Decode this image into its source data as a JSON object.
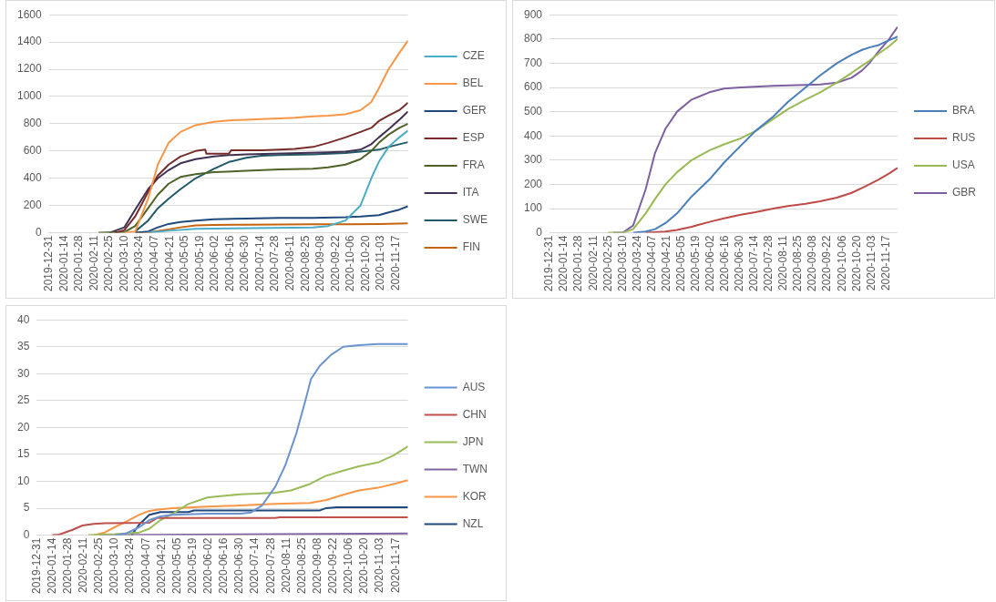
{
  "chart_data": [
    {
      "type": "line",
      "xlim": [
        "2019-12-31",
        "2020-11-28"
      ],
      "xticks": [
        "2019-12-31",
        "2020-01-14",
        "2020-01-28",
        "2020-02-11",
        "2020-02-25",
        "2020-03-10",
        "2020-03-24",
        "2020-04-07",
        "2020-04-21",
        "2020-05-05",
        "2020-05-19",
        "2020-06-02",
        "2020-06-16",
        "2020-06-30",
        "2020-07-14",
        "2020-07-28",
        "2020-08-11",
        "2020-08-25",
        "2020-09-08",
        "2020-09-22",
        "2020-10-06",
        "2020-10-20",
        "2020-11-03",
        "2020-11-17"
      ],
      "ylim": [
        0,
        1600
      ],
      "yticks": [
        0,
        200,
        400,
        600,
        800,
        1000,
        1200,
        1400,
        1600
      ],
      "grid": "y",
      "legend": "right",
      "marker": "none",
      "series": [
        {
          "name": "CZE",
          "color": "#4bacc6",
          "x": [
            "2020-04-01",
            "2020-04-20",
            "2020-05-15",
            "2020-06-01",
            "2020-09-01",
            "2020-09-15",
            "2020-10-01",
            "2020-10-15",
            "2020-10-25",
            "2020-11-01",
            "2020-11-10",
            "2020-11-20",
            "2020-11-28"
          ],
          "values": [
            2,
            15,
            30,
            31,
            40,
            50,
            90,
            200,
            400,
            520,
            630,
            700,
            750
          ]
        },
        {
          "name": "BEL",
          "color": "#f79646",
          "x": [
            "2020-03-10",
            "2020-03-20",
            "2020-04-01",
            "2020-04-10",
            "2020-04-20",
            "2020-05-01",
            "2020-05-15",
            "2020-06-01",
            "2020-06-15",
            "2020-07-01",
            "2020-07-15",
            "2020-08-01",
            "2020-08-15",
            "2020-09-01",
            "2020-09-15",
            "2020-10-01",
            "2020-10-15",
            "2020-10-25",
            "2020-11-01",
            "2020-11-10",
            "2020-11-20",
            "2020-11-28"
          ],
          "values": [
            0,
            10,
            250,
            500,
            660,
            740,
            790,
            815,
            825,
            830,
            835,
            840,
            845,
            855,
            860,
            870,
            900,
            960,
            1060,
            1200,
            1320,
            1410
          ]
        },
        {
          "name": "GER",
          "color": "#1f497d",
          "x": [
            "2020-03-20",
            "2020-04-01",
            "2020-04-10",
            "2020-04-20",
            "2020-05-01",
            "2020-05-15",
            "2020-06-01",
            "2020-07-01",
            "2020-08-01",
            "2020-09-01",
            "2020-10-01",
            "2020-10-15",
            "2020-11-01",
            "2020-11-10",
            "2020-11-20",
            "2020-11-28"
          ],
          "values": [
            0,
            10,
            40,
            65,
            80,
            90,
            100,
            105,
            110,
            110,
            115,
            120,
            130,
            150,
            170,
            195
          ]
        },
        {
          "name": "ESP",
          "color": "#772c2a",
          "x": [
            "2020-03-01",
            "2020-03-10",
            "2020-03-20",
            "2020-04-01",
            "2020-04-10",
            "2020-04-20",
            "2020-05-01",
            "2020-05-15",
            "2020-05-24",
            "2020-05-25",
            "2020-06-15",
            "2020-06-17",
            "2020-07-15",
            "2020-08-01",
            "2020-08-15",
            "2020-09-01",
            "2020-09-15",
            "2020-10-01",
            "2020-10-15",
            "2020-10-25",
            "2020-11-01",
            "2020-11-10",
            "2020-11-20",
            "2020-11-28"
          ],
          "values": [
            0,
            20,
            120,
            300,
            420,
            500,
            560,
            600,
            610,
            580,
            580,
            605,
            605,
            610,
            615,
            630,
            660,
            700,
            740,
            770,
            820,
            860,
            900,
            955
          ]
        },
        {
          "name": "FRA",
          "color": "#4f6228",
          "x": [
            "2020-02-15",
            "2020-03-10",
            "2020-03-20",
            "2020-04-01",
            "2020-04-10",
            "2020-04-20",
            "2020-05-01",
            "2020-05-15",
            "2020-06-01",
            "2020-07-01",
            "2020-08-01",
            "2020-09-01",
            "2020-09-15",
            "2020-10-01",
            "2020-10-15",
            "2020-10-25",
            "2020-11-01",
            "2020-11-10",
            "2020-11-20",
            "2020-11-28"
          ],
          "values": [
            0,
            5,
            50,
            180,
            280,
            360,
            410,
            430,
            445,
            455,
            465,
            470,
            480,
            500,
            540,
            600,
            660,
            720,
            770,
            800
          ]
        },
        {
          "name": "ITA",
          "color": "#403152",
          "x": [
            "2020-02-25",
            "2020-03-10",
            "2020-03-20",
            "2020-04-01",
            "2020-04-10",
            "2020-04-20",
            "2020-05-01",
            "2020-05-15",
            "2020-06-01",
            "2020-06-15",
            "2020-07-01",
            "2020-09-15",
            "2020-10-01",
            "2020-10-15",
            "2020-10-25",
            "2020-11-01",
            "2020-11-10",
            "2020-11-20",
            "2020-11-28"
          ],
          "values": [
            0,
            40,
            170,
            320,
            400,
            460,
            510,
            540,
            560,
            570,
            575,
            590,
            595,
            610,
            650,
            700,
            760,
            830,
            890
          ]
        },
        {
          "name": "SWE",
          "color": "#215968",
          "x": [
            "2020-03-20",
            "2020-04-01",
            "2020-04-10",
            "2020-04-20",
            "2020-05-01",
            "2020-05-15",
            "2020-06-01",
            "2020-06-15",
            "2020-07-01",
            "2020-07-15",
            "2020-08-01",
            "2020-09-01",
            "2020-10-01",
            "2020-10-15",
            "2020-11-01",
            "2020-11-10",
            "2020-11-20",
            "2020-11-28"
          ],
          "values": [
            10,
            90,
            180,
            250,
            320,
            400,
            470,
            520,
            550,
            565,
            570,
            575,
            585,
            595,
            610,
            630,
            650,
            665
          ]
        },
        {
          "name": "FIN",
          "color": "#c5630f",
          "x": [
            "2020-03-20",
            "2020-04-01",
            "2020-04-20",
            "2020-05-01",
            "2020-05-15",
            "2020-06-01",
            "2020-07-01",
            "2020-09-01",
            "2020-10-01",
            "2020-11-01",
            "2020-11-28"
          ],
          "values": [
            0,
            2,
            25,
            40,
            55,
            58,
            60,
            62,
            63,
            65,
            70
          ]
        }
      ]
    },
    {
      "type": "line",
      "xlim": [
        "2019-12-31",
        "2020-11-28"
      ],
      "xticks": [
        "2019-12-31",
        "2020-01-14",
        "2020-01-28",
        "2020-02-11",
        "2020-02-25",
        "2020-03-10",
        "2020-03-24",
        "2020-04-07",
        "2020-04-21",
        "2020-05-05",
        "2020-05-19",
        "2020-06-02",
        "2020-06-16",
        "2020-06-30",
        "2020-07-14",
        "2020-07-28",
        "2020-08-11",
        "2020-08-25",
        "2020-09-08",
        "2020-09-22",
        "2020-10-06",
        "2020-10-20",
        "2020-11-03",
        "2020-11-17"
      ],
      "ylim": [
        0,
        900
      ],
      "yticks": [
        0,
        100,
        200,
        300,
        400,
        500,
        600,
        700,
        800,
        900
      ],
      "grid": "y",
      "legend": "right",
      "marker": "none",
      "series": [
        {
          "name": "BRA",
          "color": "#4a7ebb",
          "x": [
            "2020-03-20",
            "2020-04-01",
            "2020-04-10",
            "2020-04-20",
            "2020-05-01",
            "2020-05-15",
            "2020-06-01",
            "2020-06-15",
            "2020-07-01",
            "2020-07-15",
            "2020-08-01",
            "2020-08-15",
            "2020-09-01",
            "2020-09-15",
            "2020-10-01",
            "2020-10-15",
            "2020-10-25",
            "2020-11-01",
            "2020-11-10",
            "2020-11-20",
            "2020-11-28"
          ],
          "values": [
            0,
            5,
            15,
            40,
            80,
            150,
            220,
            290,
            360,
            420,
            480,
            540,
            600,
            650,
            700,
            735,
            755,
            765,
            775,
            795,
            810
          ]
        },
        {
          "name": "RUS",
          "color": "#be4b48",
          "x": [
            "2020-04-01",
            "2020-04-20",
            "2020-05-01",
            "2020-05-15",
            "2020-06-01",
            "2020-06-15",
            "2020-07-01",
            "2020-07-15",
            "2020-08-01",
            "2020-08-15",
            "2020-09-01",
            "2020-09-15",
            "2020-10-01",
            "2020-10-15",
            "2020-10-25",
            "2020-11-01",
            "2020-11-10",
            "2020-11-20",
            "2020-11-28"
          ],
          "values": [
            0,
            5,
            12,
            25,
            45,
            60,
            75,
            85,
            100,
            110,
            120,
            130,
            145,
            165,
            185,
            200,
            220,
            245,
            268
          ]
        },
        {
          "name": "USA",
          "color": "#98b954",
          "x": [
            "2020-02-25",
            "2020-03-10",
            "2020-03-20",
            "2020-04-01",
            "2020-04-10",
            "2020-04-20",
            "2020-05-01",
            "2020-05-15",
            "2020-06-01",
            "2020-06-15",
            "2020-07-01",
            "2020-07-15",
            "2020-08-01",
            "2020-08-15",
            "2020-09-01",
            "2020-09-15",
            "2020-10-01",
            "2020-10-15",
            "2020-10-25",
            "2020-11-01",
            "2020-11-10",
            "2020-11-20",
            "2020-11-28"
          ],
          "values": [
            0,
            0,
            15,
            80,
            140,
            200,
            250,
            300,
            340,
            365,
            390,
            420,
            470,
            510,
            550,
            580,
            620,
            660,
            690,
            710,
            740,
            770,
            800
          ]
        },
        {
          "name": "GBR",
          "color": "#7d60a0",
          "x": [
            "2020-03-01",
            "2020-03-10",
            "2020-03-20",
            "2020-04-01",
            "2020-04-10",
            "2020-04-20",
            "2020-05-01",
            "2020-05-15",
            "2020-06-01",
            "2020-06-15",
            "2020-07-01",
            "2020-08-01",
            "2020-09-01",
            "2020-09-15",
            "2020-10-01",
            "2020-10-15",
            "2020-10-25",
            "2020-11-01",
            "2020-11-10",
            "2020-11-20",
            "2020-11-28"
          ],
          "values": [
            0,
            0,
            30,
            180,
            330,
            430,
            500,
            550,
            580,
            595,
            600,
            607,
            610,
            612,
            620,
            640,
            670,
            700,
            750,
            800,
            850
          ]
        }
      ]
    },
    {
      "type": "line",
      "xlim": [
        "2019-12-31",
        "2020-11-28"
      ],
      "xticks": [
        "2019-12-31",
        "2020-01-14",
        "2020-01-28",
        "2020-02-11",
        "2020-02-25",
        "2020-03-10",
        "2020-03-24",
        "2020-04-07",
        "2020-04-21",
        "2020-05-05",
        "2020-05-19",
        "2020-06-02",
        "2020-06-16",
        "2020-06-30",
        "2020-07-14",
        "2020-07-28",
        "2020-08-11",
        "2020-08-25",
        "2020-09-08",
        "2020-09-22",
        "2020-10-06",
        "2020-10-20",
        "2020-11-03",
        "2020-11-17"
      ],
      "ylim": [
        0,
        40
      ],
      "yticks": [
        0,
        5,
        10,
        15,
        20,
        25,
        30,
        35,
        40
      ],
      "grid": "y",
      "legend": "right",
      "marker": "none",
      "series": [
        {
          "name": "AUS",
          "color": "#6a93d0",
          "x": [
            "2020-03-10",
            "2020-03-20",
            "2020-04-01",
            "2020-04-10",
            "2020-04-20",
            "2020-05-01",
            "2020-06-01",
            "2020-07-01",
            "2020-07-10",
            "2020-07-20",
            "2020-08-01",
            "2020-08-10",
            "2020-08-20",
            "2020-08-28",
            "2020-09-02",
            "2020-09-10",
            "2020-09-20",
            "2020-10-01",
            "2020-10-15",
            "2020-11-01",
            "2020-11-28"
          ],
          "values": [
            0,
            0.3,
            1.5,
            2.8,
            3.5,
            3.8,
            4.0,
            4.0,
            4.2,
            5.5,
            9,
            13,
            19,
            25,
            29,
            31.5,
            33.5,
            35,
            35.3,
            35.5,
            35.5
          ]
        },
        {
          "name": "CHN",
          "color": "#c0504d",
          "x": [
            "2020-01-14",
            "2020-01-20",
            "2020-02-01",
            "2020-02-10",
            "2020-02-20",
            "2020-03-01",
            "2020-04-10",
            "2020-04-17",
            "2020-08-01",
            "2020-08-05",
            "2020-11-28"
          ],
          "values": [
            0,
            0.1,
            1,
            1.8,
            2.1,
            2.2,
            2.3,
            3.2,
            3.2,
            3.3,
            3.3
          ]
        },
        {
          "name": "JPN",
          "color": "#9bbb59",
          "x": [
            "2020-02-15",
            "2020-03-10",
            "2020-04-01",
            "2020-04-10",
            "2020-04-20",
            "2020-05-01",
            "2020-05-15",
            "2020-06-01",
            "2020-06-15",
            "2020-07-01",
            "2020-07-15",
            "2020-08-01",
            "2020-08-15",
            "2020-09-01",
            "2020-09-15",
            "2020-10-01",
            "2020-10-15",
            "2020-11-01",
            "2020-11-15",
            "2020-11-28"
          ],
          "values": [
            0,
            0.2,
            0.5,
            1.2,
            2.8,
            4.0,
            5.8,
            7.0,
            7.3,
            7.6,
            7.7,
            7.9,
            8.3,
            9.5,
            11.0,
            12.0,
            12.8,
            13.5,
            14.8,
            16.5
          ]
        },
        {
          "name": "TWN",
          "color": "#8064a2",
          "x": [
            "2020-02-25",
            "2020-11-28"
          ],
          "values": [
            0,
            0.3
          ]
        },
        {
          "name": "KOR",
          "color": "#f79646",
          "x": [
            "2020-02-20",
            "2020-03-01",
            "2020-03-10",
            "2020-03-20",
            "2020-04-01",
            "2020-04-10",
            "2020-04-20",
            "2020-05-01",
            "2020-06-01",
            "2020-07-01",
            "2020-08-01",
            "2020-09-01",
            "2020-09-15",
            "2020-10-01",
            "2020-10-15",
            "2020-11-01",
            "2020-11-15",
            "2020-11-28"
          ],
          "values": [
            0,
            0.5,
            1.5,
            2.5,
            3.8,
            4.5,
            4.8,
            5.0,
            5.3,
            5.5,
            5.8,
            6.0,
            6.5,
            7.5,
            8.3,
            8.8,
            9.5,
            10.2
          ]
        },
        {
          "name": "NZL",
          "color": "#1f497d",
          "x": [
            "2020-03-25",
            "2020-04-01",
            "2020-04-10",
            "2020-04-20",
            "2020-05-15",
            "2020-05-20",
            "2020-09-10",
            "2020-09-15",
            "2020-09-25",
            "2020-11-28"
          ],
          "values": [
            0,
            2.0,
            3.8,
            4.3,
            4.3,
            4.6,
            4.6,
            5.0,
            5.2,
            5.2
          ]
        }
      ]
    }
  ]
}
